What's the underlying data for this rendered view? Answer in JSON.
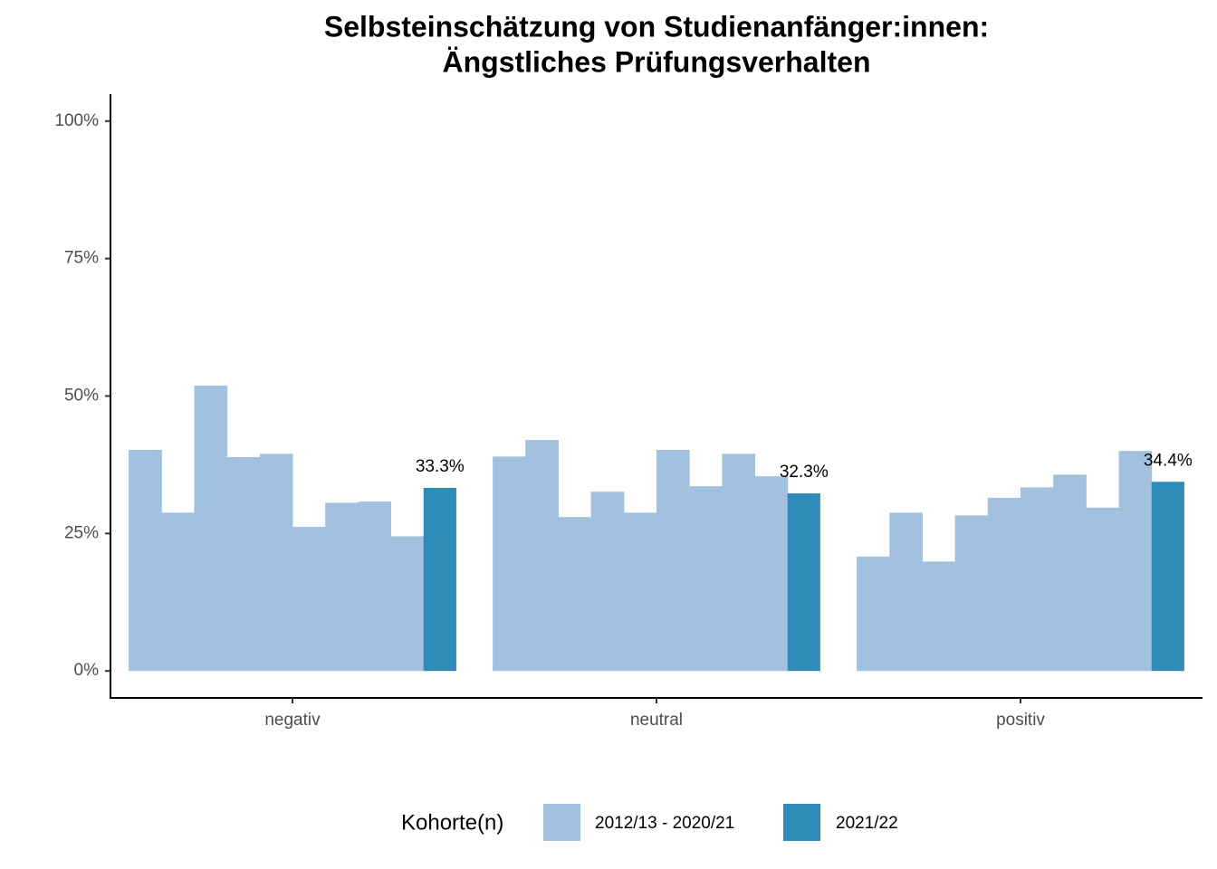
{
  "chart_data": {
    "type": "grouped_bar",
    "title": [
      "Selbsteinschätzung von Studienanfänger:innen:",
      "Ängstliches Prüfungsverhalten"
    ],
    "categories": [
      "negativ",
      "neutral",
      "positiv"
    ],
    "legend_title": "Kohorte(n)",
    "series": [
      {
        "name": "2012/13 - 2020/21",
        "color": "#a2c1de",
        "values": [
          [
            40.2,
            28.8,
            51.9,
            38.9,
            39.5,
            26.2,
            30.6,
            30.8,
            24.5
          ],
          [
            39.0,
            42.0,
            28.0,
            32.6,
            28.8,
            40.2,
            33.6,
            39.5,
            35.4
          ],
          [
            20.8,
            28.8,
            19.9,
            28.3,
            31.5,
            33.4,
            35.7,
            29.7,
            40.0
          ]
        ]
      },
      {
        "name": "2021/22",
        "color": "#2f8cb8",
        "values": [
          33.3,
          32.3,
          34.4
        ],
        "value_labels": [
          "33.3%",
          "32.3%",
          "34.4%"
        ]
      }
    ],
    "ylim": [
      -4.9,
      104.9
    ],
    "yticks": [
      {
        "value": 0,
        "label": "0%"
      },
      {
        "value": 25,
        "label": "25%"
      },
      {
        "value": 50,
        "label": "50%"
      },
      {
        "value": 75,
        "label": "75%"
      },
      {
        "value": 100,
        "label": "100%"
      }
    ]
  }
}
